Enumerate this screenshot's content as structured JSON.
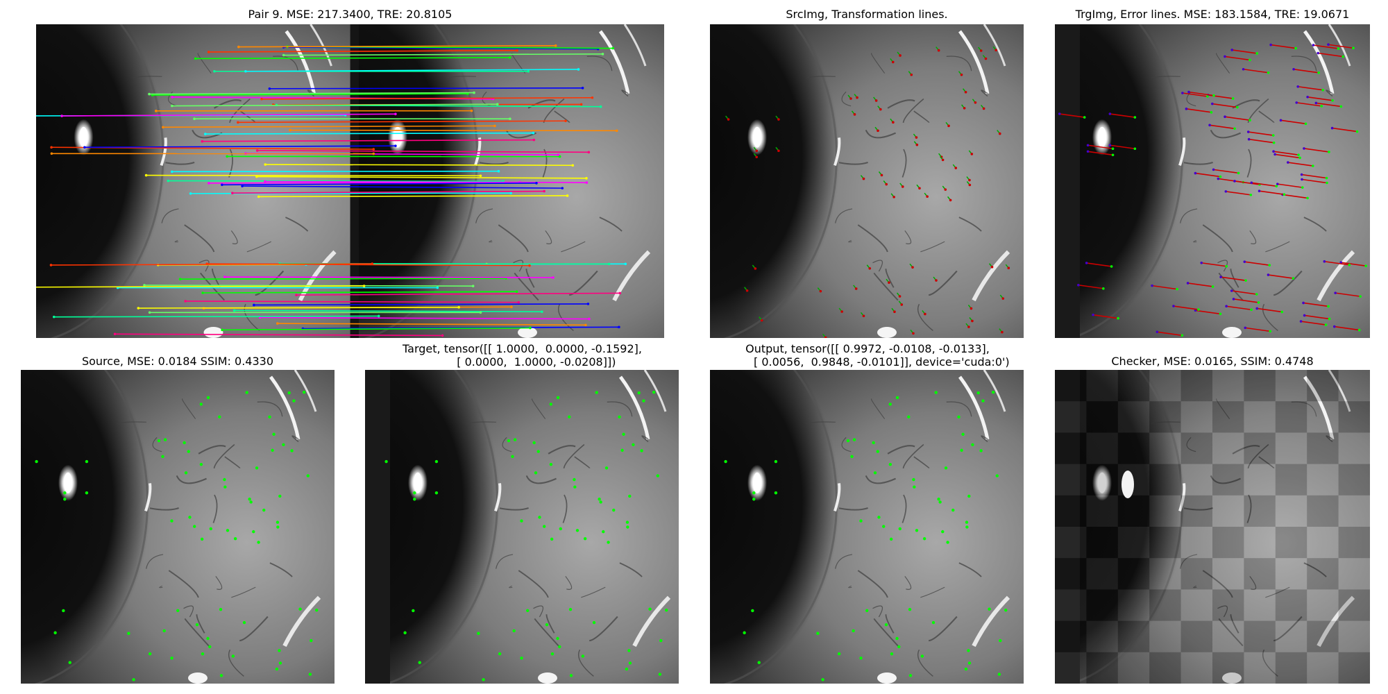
{
  "figure": {
    "titles": {
      "matches": "Pair 9. MSE: 217.3400, TRE: 20.8105",
      "src_lines": "SrcImg, Transformation lines.",
      "trg_lines": "TrgImg, Error lines. MSE: 183.1584, TRE: 19.0671",
      "source": "Source, MSE: 0.0184 SSIM: 0.4330",
      "target": "Target, tensor([[ 1.0000,  0.0000, -0.1592],\n        [ 0.0000,  1.0000, -0.0208]])",
      "output": "Output, tensor([[ 0.9972, -0.0108, -0.0133],\n        [ 0.0056,  0.9848, -0.0101]], device='cuda:0')",
      "checker": "Checker, MSE: 0.0165, SSIM: 0.4748"
    },
    "colors": {
      "background": "#ffffff",
      "keypoint": "#00ff00",
      "error_line": "#cc0000",
      "error_tip": "#4400cc",
      "match_palette": [
        "#ffff00",
        "#00ff00",
        "#00ffff",
        "#ff00ff",
        "#ff3300",
        "#0000ff",
        "#ff8800",
        "#66ff66",
        "#ff0080",
        "#00ff99"
      ]
    },
    "icons": {
      "retina_image": "grayscale-eye-image",
      "keypoint_marker": "green-dot"
    }
  }
}
